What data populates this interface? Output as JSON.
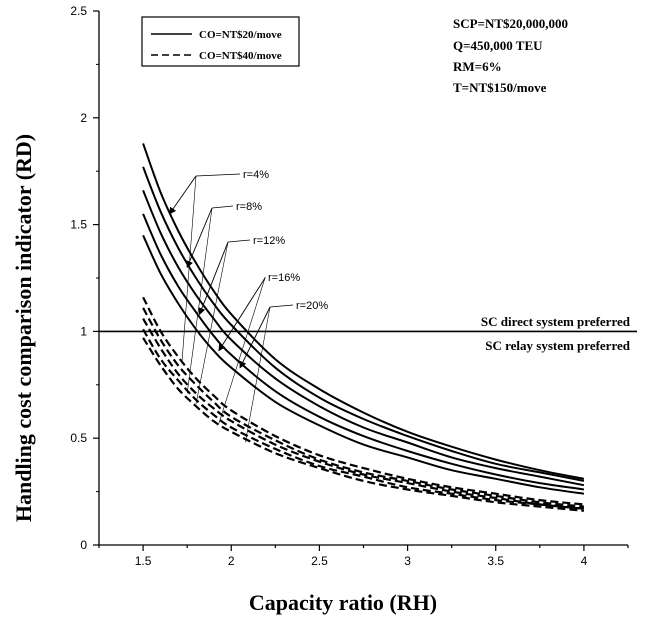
{
  "chart_data": {
    "type": "line",
    "title": "",
    "xlabel": "Capacity ratio (RH)",
    "ylabel": "Handling cost comparison indicator (RD)",
    "xlim": [
      1.25,
      4.25
    ],
    "ylim": [
      0,
      2.5
    ],
    "xticks": [
      "1.5",
      "2",
      "2.5",
      "3",
      "3.5",
      "4"
    ],
    "yticks": [
      "0",
      "0.5",
      "1",
      "1.5",
      "2",
      "2.5"
    ],
    "x": [
      1.5,
      1.6,
      1.7,
      1.8,
      1.9,
      2.0,
      2.25,
      2.5,
      2.75,
      3.0,
      3.25,
      3.5,
      3.75,
      4.0
    ],
    "series": [
      {
        "style": "solid",
        "group": "co20",
        "r": "r=4%",
        "values": [
          1.88,
          1.65,
          1.47,
          1.32,
          1.19,
          1.08,
          0.87,
          0.73,
          0.62,
          0.53,
          0.46,
          0.4,
          0.35,
          0.31
        ]
      },
      {
        "style": "solid",
        "group": "co20",
        "r": "r=8%",
        "values": [
          1.77,
          1.56,
          1.39,
          1.25,
          1.13,
          1.03,
          0.83,
          0.69,
          0.59,
          0.51,
          0.44,
          0.38,
          0.34,
          0.3
        ]
      },
      {
        "style": "solid",
        "group": "co20",
        "r": "r=12%",
        "values": [
          1.66,
          1.46,
          1.3,
          1.17,
          1.06,
          0.96,
          0.78,
          0.65,
          0.55,
          0.48,
          0.41,
          0.36,
          0.32,
          0.28
        ]
      },
      {
        "style": "solid",
        "group": "co20",
        "r": "r=16%",
        "values": [
          1.55,
          1.36,
          1.21,
          1.09,
          0.98,
          0.89,
          0.72,
          0.6,
          0.51,
          0.44,
          0.38,
          0.33,
          0.29,
          0.26
        ]
      },
      {
        "style": "solid",
        "group": "co20",
        "r": "r=20%",
        "values": [
          1.45,
          1.27,
          1.13,
          1.01,
          0.91,
          0.83,
          0.67,
          0.56,
          0.47,
          0.41,
          0.35,
          0.31,
          0.27,
          0.24
        ]
      },
      {
        "style": "dashed",
        "group": "co40",
        "r": "r=4%",
        "values": [
          1.16,
          1.0,
          0.88,
          0.78,
          0.7,
          0.63,
          0.51,
          0.42,
          0.36,
          0.31,
          0.27,
          0.24,
          0.21,
          0.19
        ]
      },
      {
        "style": "dashed",
        "group": "co40",
        "r": "r=8%",
        "values": [
          1.11,
          0.96,
          0.84,
          0.75,
          0.67,
          0.6,
          0.49,
          0.4,
          0.34,
          0.3,
          0.26,
          0.23,
          0.2,
          0.18
        ]
      },
      {
        "style": "dashed",
        "group": "co40",
        "r": "r=12%",
        "values": [
          1.06,
          0.92,
          0.8,
          0.71,
          0.64,
          0.58,
          0.47,
          0.39,
          0.33,
          0.29,
          0.25,
          0.22,
          0.19,
          0.17
        ]
      },
      {
        "style": "dashed",
        "group": "co40",
        "r": "r=16%",
        "values": [
          1.01,
          0.87,
          0.77,
          0.68,
          0.61,
          0.55,
          0.45,
          0.37,
          0.32,
          0.27,
          0.24,
          0.21,
          0.19,
          0.17
        ]
      },
      {
        "style": "dashed",
        "group": "co40",
        "r": "r=20%",
        "values": [
          0.97,
          0.84,
          0.73,
          0.65,
          0.58,
          0.53,
          0.43,
          0.36,
          0.3,
          0.26,
          0.23,
          0.2,
          0.18,
          0.16
        ]
      }
    ],
    "reference_line": {
      "y": 1,
      "label_above": "SC direct system preferred",
      "label_below": "SC relay system preferred"
    },
    "legend": {
      "position": "top-left",
      "entries": [
        {
          "label": "CO=NT$20/move",
          "style": "solid"
        },
        {
          "label": "CO=NT$40/move",
          "style": "dashed"
        }
      ]
    },
    "parameters": [
      "SCP=NT$20,000,000",
      "Q=450,000 TEU",
      "RM=6%",
      "T=NT$150/move"
    ],
    "r_annotations": [
      {
        "label": "r=4%",
        "solid_target": [
          1.65,
          1.55
        ],
        "dashed_target": [
          1.72,
          0.85
        ]
      },
      {
        "label": "r=8%",
        "solid_target": [
          1.75,
          1.3
        ],
        "dashed_target": [
          1.75,
          0.71
        ]
      },
      {
        "label": "r=12%",
        "solid_target": [
          1.82,
          1.08
        ],
        "dashed_target": [
          1.8,
          0.66
        ]
      },
      {
        "label": "r=16%",
        "solid_target": [
          1.93,
          0.91
        ],
        "dashed_target": [
          1.93,
          0.57
        ]
      },
      {
        "label": "r=20%",
        "solid_target": [
          2.05,
          0.83
        ],
        "dashed_target": [
          2.08,
          0.48
        ]
      }
    ],
    "grid": false
  }
}
